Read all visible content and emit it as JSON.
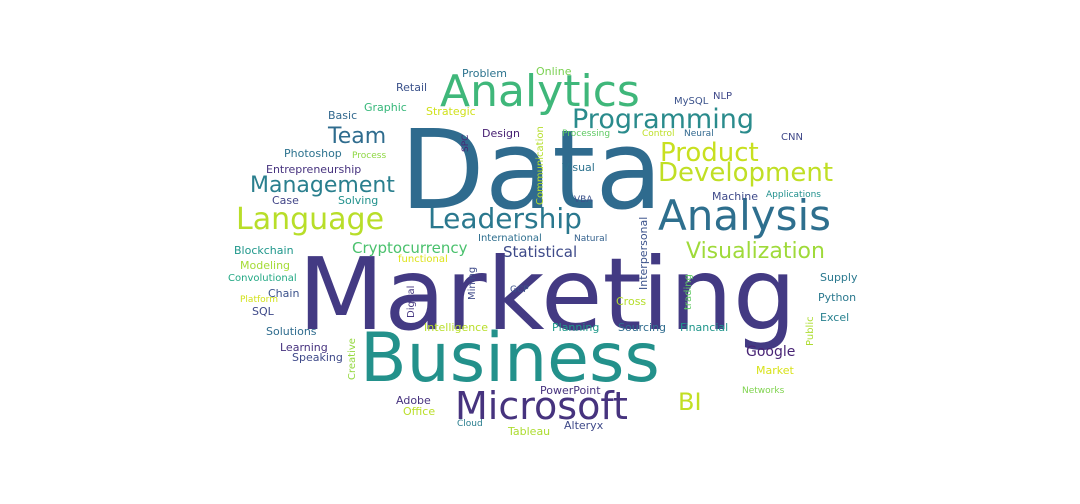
{
  "image": {
    "kind": "word-cloud",
    "background": "#ffffff",
    "palette": [
      "#440154",
      "#3b528b",
      "#21918c",
      "#5ec962",
      "#fde725"
    ],
    "words": [
      {
        "text": "Data",
        "color": "#2f6b8e"
      },
      {
        "text": "Marketing",
        "color": "#433a83"
      },
      {
        "text": "Business",
        "color": "#23918b"
      },
      {
        "text": "Analytics",
        "color": "#3fb77a"
      },
      {
        "text": "Analysis",
        "color": "#2e6f8e"
      },
      {
        "text": "Microsoft",
        "color": "#46337e"
      },
      {
        "text": "Programming",
        "color": "#2a8b8c"
      },
      {
        "text": "Product",
        "color": "#c8e020"
      },
      {
        "text": "Development",
        "color": "#c0df25"
      },
      {
        "text": "Language",
        "color": "#b8de29"
      },
      {
        "text": "Leadership",
        "color": "#2a788e"
      },
      {
        "text": "Management",
        "color": "#2a7f8e"
      },
      {
        "text": "Team",
        "color": "#2f6c8e"
      },
      {
        "text": "Visualization",
        "color": "#9fda3a"
      },
      {
        "text": "BI",
        "color": "#c2df23"
      },
      {
        "text": "Cryptocurrency",
        "color": "#4ac16d"
      },
      {
        "text": "Statistical",
        "color": "#3e4a89"
      },
      {
        "text": "Google",
        "color": "#482475"
      },
      {
        "text": "Retail",
        "color": "#3b528b"
      },
      {
        "text": "Problem",
        "color": "#2c738e"
      },
      {
        "text": "Online",
        "color": "#7ad151"
      },
      {
        "text": "MySQL",
        "color": "#3b528b"
      },
      {
        "text": "NLP",
        "color": "#3f4889"
      },
      {
        "text": "Basic",
        "color": "#31688e"
      },
      {
        "text": "Graphic",
        "color": "#35b779"
      },
      {
        "text": "Strategic",
        "color": "#d0e11c"
      },
      {
        "text": "Design",
        "color": "#482173"
      },
      {
        "text": "Processing",
        "color": "#5ec962"
      },
      {
        "text": "Control",
        "color": "#bddf26"
      },
      {
        "text": "Neural",
        "color": "#31688e"
      },
      {
        "text": "CNN",
        "color": "#3f4889"
      },
      {
        "text": "Communication",
        "color": "#b5de2b"
      },
      {
        "text": "SPC",
        "color": "#482475"
      },
      {
        "text": "Photoshop",
        "color": "#2c728e"
      },
      {
        "text": "Process",
        "color": "#8fd744"
      },
      {
        "text": "Entrepreneurship",
        "color": "#46327e"
      },
      {
        "text": "Visual",
        "color": "#2c728e"
      },
      {
        "text": "Case",
        "color": "#414487"
      },
      {
        "text": "Solving",
        "color": "#21918c"
      },
      {
        "text": "VBA",
        "color": "#3b528b"
      },
      {
        "text": "Machine",
        "color": "#3e4989"
      },
      {
        "text": "Applications",
        "color": "#21908d"
      },
      {
        "text": "Blockchain",
        "color": "#1f978b"
      },
      {
        "text": "International",
        "color": "#2e6e8e"
      },
      {
        "text": "Natural",
        "color": "#34618d"
      },
      {
        "text": "Interpersonal",
        "color": "#3b528b"
      },
      {
        "text": "Modeling",
        "color": "#a5db36"
      },
      {
        "text": "functional",
        "color": "#dde318"
      },
      {
        "text": "Convolutional",
        "color": "#22a884"
      },
      {
        "text": "Platform",
        "color": "#d2e21b"
      },
      {
        "text": "Chain",
        "color": "#3b528b"
      },
      {
        "text": "Mining",
        "color": "#3e4a89"
      },
      {
        "text": "GCP",
        "color": "#3b528b"
      },
      {
        "text": "trading",
        "color": "#5ec962"
      },
      {
        "text": "Supply",
        "color": "#2a788e"
      },
      {
        "text": "Python",
        "color": "#2a788e"
      },
      {
        "text": "SQL",
        "color": "#3e4989"
      },
      {
        "text": "Digital",
        "color": "#453781"
      },
      {
        "text": "Cross",
        "color": "#b5de2b"
      },
      {
        "text": "Solutions",
        "color": "#2f6c8e"
      },
      {
        "text": "Intelligence",
        "color": "#b8de29"
      },
      {
        "text": "Planning",
        "color": "#1f998a"
      },
      {
        "text": "Sourcing",
        "color": "#2f6c8e"
      },
      {
        "text": "Financial",
        "color": "#1f968b"
      },
      {
        "text": "Excel",
        "color": "#27808e"
      },
      {
        "text": "Learning",
        "color": "#46327e"
      },
      {
        "text": "Public",
        "color": "#addc30"
      },
      {
        "text": "Speaking",
        "color": "#3e4989"
      },
      {
        "text": "Creative",
        "color": "#95d840"
      },
      {
        "text": "Market",
        "color": "#d8e219"
      },
      {
        "text": "PowerPoint",
        "color": "#46327e"
      },
      {
        "text": "Adobe",
        "color": "#46327e"
      },
      {
        "text": "Networks",
        "color": "#7fd34e"
      },
      {
        "text": "Office",
        "color": "#bade28"
      },
      {
        "text": "Alteryx",
        "color": "#3e4989"
      },
      {
        "text": "Cloud",
        "color": "#287d8e"
      },
      {
        "text": "Tableau",
        "color": "#addc30"
      }
    ]
  }
}
